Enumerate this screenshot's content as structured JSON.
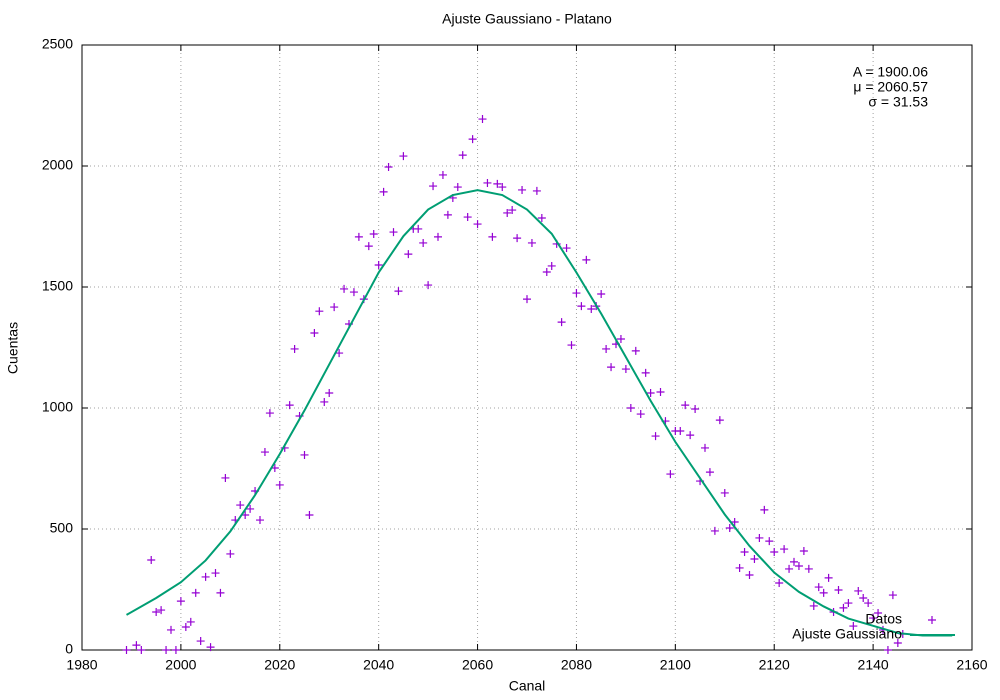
{
  "chart_data": {
    "type": "scatter",
    "title": "Ajuste Gaussiano - Platano",
    "xlabel": "Canal",
    "ylabel": "Cuentas",
    "annotations": [
      "A = 1900.06",
      "μ = 2060.57",
      "σ = 31.53"
    ],
    "xlim": [
      1980,
      2160
    ],
    "ylim": [
      0,
      2500
    ],
    "xticks": [
      1980,
      2000,
      2020,
      2040,
      2060,
      2080,
      2100,
      2120,
      2140,
      2160
    ],
    "yticks": [
      0,
      500,
      1000,
      1500,
      2000,
      2500
    ],
    "grid": true,
    "legend": "bottom-right",
    "series": [
      {
        "name": "Datos",
        "type": "scatter",
        "color": "#9400d3",
        "x": [
          1989,
          1991,
          1992,
          1994,
          1995,
          1996,
          1997,
          1998,
          1999,
          2000,
          2001,
          2002,
          2003,
          2004,
          2005,
          2006,
          2007,
          2008,
          2009,
          2010,
          2011,
          2012,
          2013,
          2014,
          2015,
          2016,
          2017,
          2018,
          2019,
          2020,
          2021,
          2022,
          2023,
          2024,
          2025,
          2026,
          2027,
          2028,
          2029,
          2030,
          2031,
          2032,
          2033,
          2034,
          2035,
          2036,
          2037,
          2038,
          2039,
          2040,
          2041,
          2042,
          2043,
          2044,
          2045,
          2046,
          2047,
          2048,
          2049,
          2050,
          2051,
          2052,
          2053,
          2054,
          2055,
          2056,
          2057,
          2058,
          2059,
          2060,
          2061,
          2062,
          2063,
          2064,
          2065,
          2066,
          2067,
          2068,
          2069,
          2070,
          2071,
          2072,
          2073,
          2074,
          2075,
          2076,
          2077,
          2078,
          2079,
          2080,
          2081,
          2082,
          2083,
          2084,
          2085,
          2086,
          2087,
          2088,
          2089,
          2090,
          2091,
          2092,
          2093,
          2094,
          2095,
          2096,
          2097,
          2098,
          2099,
          2100,
          2101,
          2102,
          2103,
          2104,
          2105,
          2106,
          2107,
          2108,
          2109,
          2110,
          2111,
          2112,
          2113,
          2114,
          2115,
          2116,
          2117,
          2118,
          2119,
          2120,
          2121,
          2122,
          2123,
          2124,
          2125,
          2126,
          2127,
          2128,
          2129,
          2130,
          2131,
          2132,
          2133,
          2134,
          2135,
          2136,
          2137,
          2138,
          2139,
          2140,
          2141,
          2142,
          2143,
          2144,
          2145,
          2146
        ],
        "values": [
          0,
          20,
          0,
          372,
          157,
          165,
          0,
          83,
          0,
          202,
          95,
          116,
          236,
          37,
          302,
          12,
          318,
          236,
          711,
          397,
          537,
          599,
          558,
          583,
          657,
          537,
          818,
          979,
          752,
          682,
          835,
          1012,
          1244,
          967,
          806,
          558,
          1310,
          1400,
          1025,
          1062,
          1417,
          1227,
          1492,
          1347,
          1479,
          1707,
          1450,
          1669,
          1719,
          1591,
          1893,
          1996,
          1727,
          1483,
          2041,
          1636,
          1740,
          1740,
          1682,
          1508,
          1917,
          1707,
          1963,
          1798,
          1868,
          1913,
          2045,
          1789,
          2111,
          1760,
          2194,
          1930,
          1707,
          1926,
          1913,
          1806,
          1818,
          1702,
          1901,
          1450,
          1682,
          1897,
          1785,
          1562,
          1587,
          1678,
          1355,
          1661,
          1260,
          1475,
          1421,
          1612,
          1409,
          1421,
          1471,
          1244,
          1169,
          1264,
          1285,
          1161,
          1000,
          1236,
          975,
          1145,
          1062,
          884,
          1066,
          946,
          727,
          905,
          905,
          1012,
          888,
          996,
          698,
          835,
          735,
          492,
          950,
          649,
          504,
          529,
          339,
          405,
          310,
          376,
          463,
          579,
          450,
          405,
          277,
          417,
          335,
          364,
          347,
          409,
          335,
          182,
          260,
          236,
          298,
          157,
          248,
          174,
          194,
          99,
          244,
          215,
          194,
          132,
          153,
          83,
          0,
          227,
          29,
          66
        ]
      },
      {
        "name": "Ajuste Gaussiano",
        "type": "line",
        "color": "#009e73",
        "x": [
          1989,
          1995,
          2000,
          2005,
          2010,
          2015,
          2020,
          2025,
          2030,
          2035,
          2040,
          2045,
          2050,
          2055,
          2060,
          2065,
          2070,
          2075,
          2080,
          2085,
          2090,
          2095,
          2100,
          2105,
          2110,
          2115,
          2120,
          2125,
          2130,
          2135,
          2140,
          2145,
          2150,
          2156
        ],
        "values": [
          145,
          215,
          280,
          370,
          490,
          640,
          810,
          990,
          1180,
          1370,
          1560,
          1710,
          1820,
          1880,
          1900,
          1880,
          1820,
          1720,
          1560,
          1390,
          1210,
          1030,
          860,
          710,
          560,
          430,
          320,
          240,
          180,
          130,
          100,
          70,
          60,
          60
        ]
      }
    ]
  }
}
